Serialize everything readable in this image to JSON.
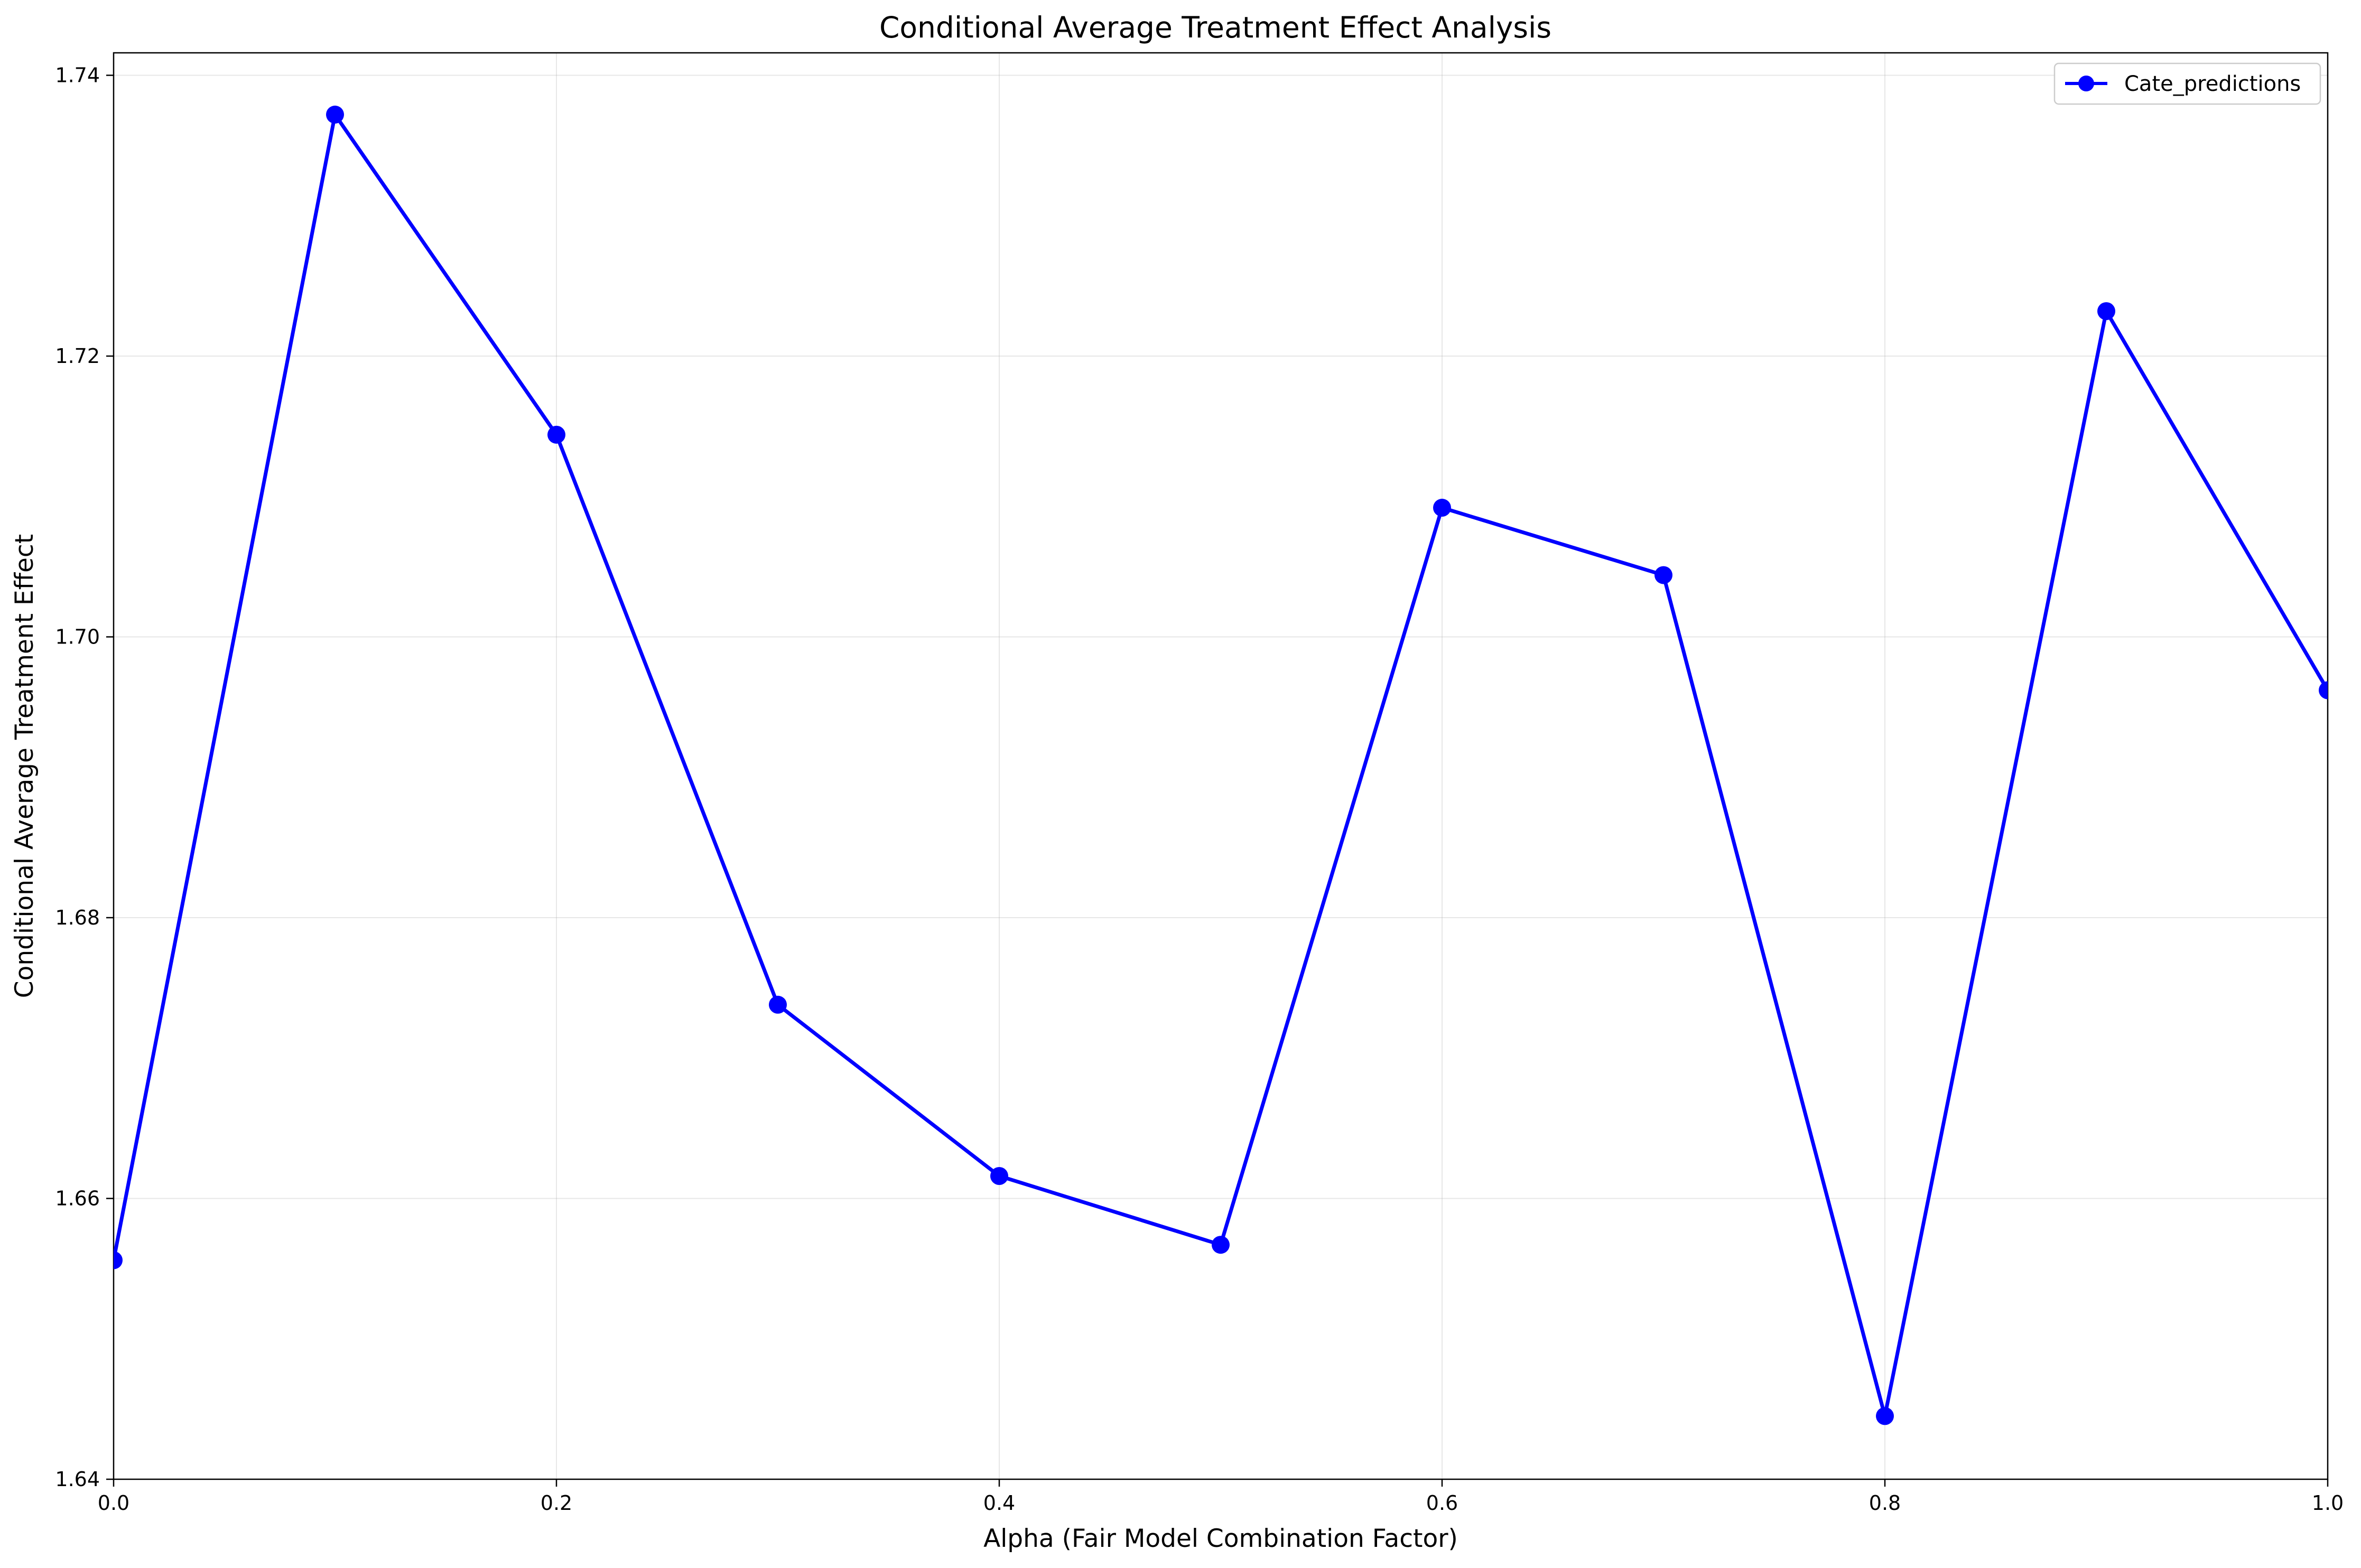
{
  "chart_data": {
    "type": "line",
    "title": "Conditional Average Treatment Effect Analysis",
    "xlabel": "Alpha (Fair Model Combination Factor)",
    "ylabel": "Conditional Average Treatment Effect",
    "xlim": [
      0,
      1
    ],
    "ylim": [
      1.64,
      1.7416
    ],
    "x_ticks": [
      0,
      0.2,
      0.4,
      0.6,
      0.8,
      1.0
    ],
    "x_tick_labels": [
      "0.0",
      "0.2",
      "0.4",
      "0.6",
      "0.8",
      "1.0"
    ],
    "y_ticks": [
      1.64,
      1.66,
      1.68,
      1.7,
      1.72,
      1.74
    ],
    "y_tick_labels": [
      "1.64",
      "1.66",
      "1.68",
      "1.70",
      "1.72",
      "1.74"
    ],
    "grid": true,
    "legend_position": "top-right",
    "series": [
      {
        "name": "Cate_predictions",
        "color": "#0000ff",
        "marker": "circle",
        "x": [
          0.0,
          0.1,
          0.2,
          0.3,
          0.4,
          0.5,
          0.6,
          0.7,
          0.8,
          0.9,
          1.0
        ],
        "y": [
          1.6556,
          1.7372,
          1.7144,
          1.6738,
          1.6616,
          1.6567,
          1.7092,
          1.7044,
          1.6445,
          1.7232,
          1.6962
        ]
      }
    ]
  }
}
